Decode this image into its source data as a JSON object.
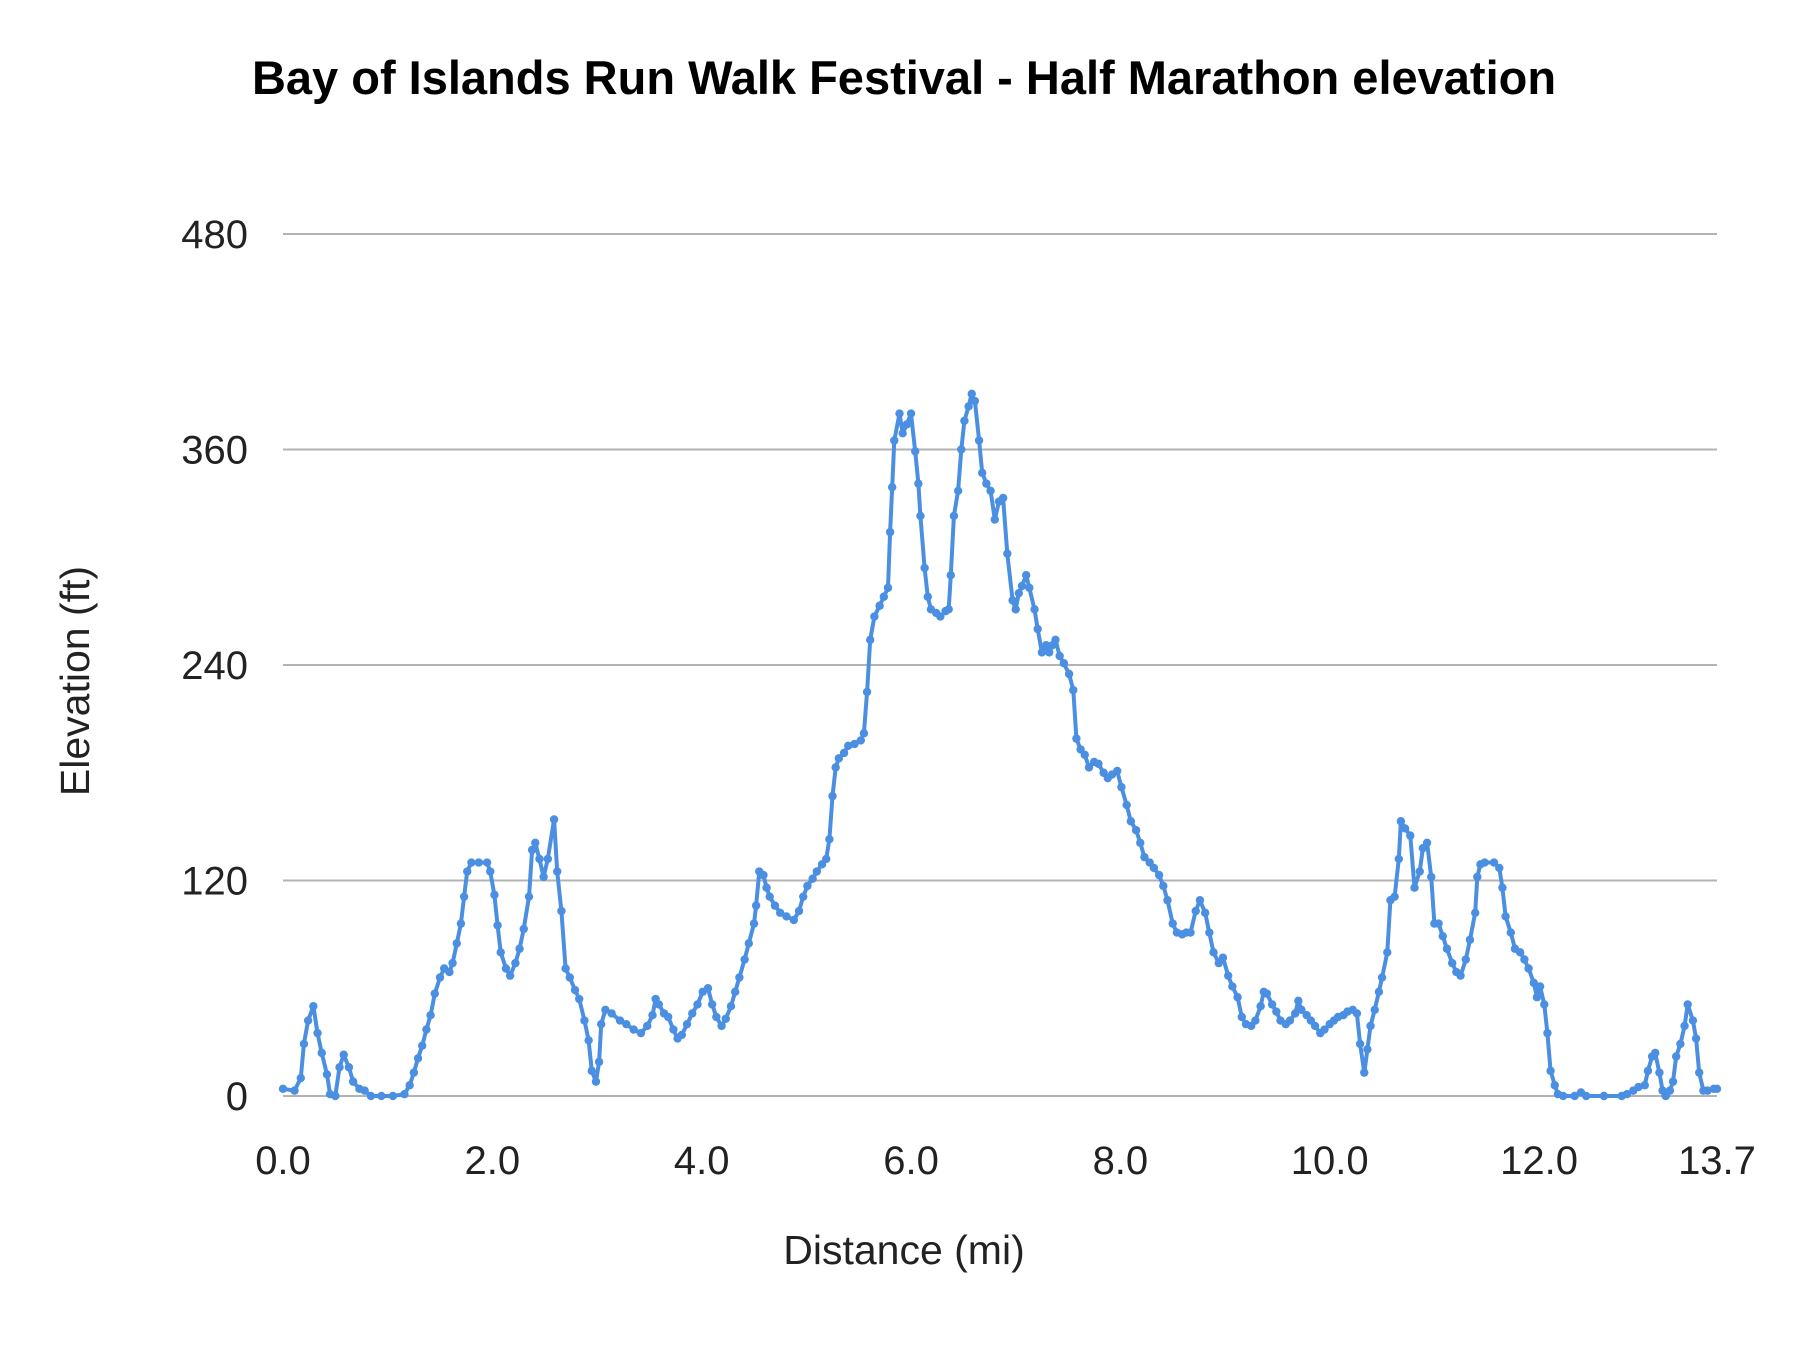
{
  "chart_data": {
    "type": "line",
    "title": "Bay of Islands Run Walk Festival - Half Marathon elevation",
    "xlabel": "Distance (mi)",
    "ylabel": "Elevation (ft)",
    "xlim": [
      0,
      13.7
    ],
    "ylim": [
      0,
      480
    ],
    "x_ticks": [
      "0.0",
      "2.0",
      "4.0",
      "6.0",
      "8.0",
      "10.0",
      "12.0",
      "13.7"
    ],
    "x_tick_values": [
      0,
      2,
      4,
      6,
      8,
      10,
      12,
      13.7
    ],
    "y_ticks": [
      "0",
      "120",
      "240",
      "360",
      "480"
    ],
    "y_tick_values": [
      0,
      120,
      240,
      360,
      480
    ],
    "grid": "horizontal",
    "legend": "none",
    "markers": true,
    "color": "#4a8fe2",
    "series": [
      {
        "x": [
          0.0,
          0.11,
          0.17,
          0.2,
          0.24,
          0.29,
          0.33,
          0.37,
          0.42,
          0.45,
          0.5,
          0.54,
          0.58,
          0.63,
          0.67,
          0.73,
          0.78,
          0.84,
          0.94,
          1.05,
          1.16,
          1.21,
          1.25,
          1.29,
          1.33,
          1.37,
          1.41,
          1.45,
          1.5,
          1.54,
          1.59,
          1.62,
          1.66,
          1.7,
          1.73,
          1.76,
          1.8,
          1.87,
          1.95,
          1.98,
          2.02,
          2.05,
          2.08,
          2.13,
          2.17,
          2.22,
          2.26,
          2.3,
          2.35,
          2.38,
          2.41,
          2.45,
          2.49,
          2.53,
          2.59,
          2.62,
          2.66,
          2.7,
          2.74,
          2.79,
          2.83,
          2.88,
          2.92,
          2.95,
          2.99,
          3.02,
          3.04,
          3.08,
          3.14,
          3.22,
          3.28,
          3.35,
          3.42,
          3.48,
          3.53,
          3.56,
          3.59,
          3.64,
          3.68,
          3.73,
          3.77,
          3.81,
          3.86,
          3.91,
          3.96,
          4.01,
          4.06,
          4.1,
          4.14,
          4.19,
          4.23,
          4.28,
          4.32,
          4.36,
          4.41,
          4.45,
          4.5,
          4.52,
          4.55,
          4.59,
          4.62,
          4.65,
          4.7,
          4.75,
          4.81,
          4.88,
          4.93,
          4.97,
          5.01,
          5.06,
          5.1,
          5.15,
          5.19,
          5.22,
          5.25,
          5.28,
          5.31,
          5.36,
          5.4,
          5.46,
          5.52,
          5.55,
          5.58,
          5.61,
          5.65,
          5.7,
          5.74,
          5.78,
          5.8,
          5.82,
          5.84,
          5.89,
          5.92,
          5.96,
          6.0,
          6.04,
          6.07,
          6.09,
          6.13,
          6.16,
          6.19,
          6.24,
          6.28,
          6.33,
          6.36,
          6.38,
          6.41,
          6.45,
          6.48,
          6.51,
          6.55,
          6.58,
          6.61,
          6.65,
          6.68,
          6.72,
          6.76,
          6.8,
          6.84,
          6.88,
          6.92,
          6.97,
          7.0,
          7.03,
          7.06,
          7.1,
          7.13,
          7.18,
          7.21,
          7.25,
          7.29,
          7.32,
          7.35,
          7.38,
          7.42,
          7.46,
          7.51,
          7.55,
          7.58,
          7.62,
          7.66,
          7.7,
          7.75,
          7.79,
          7.84,
          7.88,
          7.92,
          7.97,
          8.01,
          8.06,
          8.1,
          8.15,
          8.19,
          8.23,
          8.28,
          8.32,
          8.37,
          8.41,
          8.45,
          8.5,
          8.54,
          8.59,
          8.63,
          8.67,
          8.72,
          8.76,
          8.81,
          8.85,
          8.89,
          8.94,
          8.98,
          9.03,
          9.07,
          9.12,
          9.16,
          9.2,
          9.25,
          9.29,
          9.34,
          9.37,
          9.4,
          9.45,
          9.49,
          9.53,
          9.58,
          9.62,
          9.67,
          9.7,
          9.73,
          9.78,
          9.82,
          9.86,
          9.91,
          9.95,
          10.0,
          10.04,
          10.08,
          10.13,
          10.17,
          10.22,
          10.26,
          10.29,
          10.33,
          10.36,
          10.39,
          10.43,
          10.47,
          10.5,
          10.55,
          10.58,
          10.62,
          10.66,
          10.68,
          10.72,
          10.77,
          10.81,
          10.86,
          10.89,
          10.93,
          10.97,
          11.0,
          11.04,
          11.08,
          11.12,
          11.17,
          11.21,
          11.25,
          11.3,
          11.34,
          11.39,
          11.41,
          11.44,
          11.48,
          11.57,
          11.62,
          11.65,
          11.68,
          11.73,
          11.77,
          11.82,
          11.86,
          11.9,
          11.95,
          11.98,
          12.01,
          12.05,
          12.08,
          12.11,
          12.15,
          12.18,
          12.23,
          12.34,
          12.4,
          12.45,
          12.62,
          12.79,
          12.84,
          12.9,
          12.95,
          13.01,
          13.04,
          13.08,
          13.11,
          13.15,
          13.18,
          13.21,
          13.25,
          13.28,
          13.31,
          13.35,
          13.39,
          13.42,
          13.47,
          13.5,
          13.53,
          13.57,
          13.61,
          13.67,
          13.7
        ],
        "y": [
          4,
          3,
          10,
          29,
          42,
          50,
          35,
          24,
          12,
          1,
          0,
          16,
          23,
          16,
          8,
          4,
          3,
          0,
          0,
          0,
          1,
          6,
          13,
          21,
          28,
          37,
          45,
          57,
          66,
          71,
          69,
          74,
          85,
          96,
          111,
          125,
          130,
          130,
          130,
          125,
          112,
          95,
          80,
          71,
          67,
          74,
          82,
          93,
          111,
          137,
          141,
          132,
          122,
          132,
          154,
          125,
          103,
          71,
          66,
          59,
          54,
          42,
          31,
          14,
          8,
          19,
          40,
          48,
          46,
          42,
          40,
          37,
          35,
          39,
          45,
          54,
          51,
          46,
          44,
          37,
          32,
          34,
          40,
          46,
          51,
          58,
          60,
          51,
          44,
          39,
          43,
          50,
          58,
          66,
          76,
          85,
          96,
          106,
          125,
          123,
          116,
          111,
          106,
          102,
          100,
          98,
          103,
          111,
          117,
          121,
          125,
          129,
          132,
          143,
          167,
          183,
          188,
          191,
          195,
          196,
          198,
          202,
          225,
          254,
          267,
          273,
          278,
          283,
          314,
          339,
          365,
          380,
          369,
          374,
          380,
          359,
          341,
          323,
          294,
          278,
          271,
          269,
          267,
          270,
          271,
          290,
          323,
          337,
          360,
          376,
          384,
          391,
          387,
          365,
          347,
          341,
          337,
          321,
          331,
          333,
          302,
          276,
          271,
          280,
          284,
          290,
          283,
          271,
          260,
          247,
          251,
          247,
          251,
          254,
          245,
          241,
          235,
          226,
          199,
          193,
          190,
          183,
          186,
          185,
          180,
          177,
          179,
          181,
          172,
          162,
          153,
          148,
          141,
          133,
          130,
          127,
          123,
          117,
          109,
          96,
          91,
          90,
          91,
          91,
          103,
          109,
          102,
          91,
          80,
          74,
          77,
          67,
          61,
          55,
          44,
          40,
          39,
          42,
          50,
          58,
          57,
          51,
          47,
          42,
          40,
          42,
          46,
          53,
          48,
          45,
          42,
          39,
          35,
          37,
          40,
          42,
          44,
          45,
          47,
          48,
          46,
          29,
          13,
          26,
          39,
          48,
          58,
          66,
          80,
          109,
          111,
          132,
          153,
          149,
          145,
          116,
          125,
          138,
          141,
          122,
          96,
          96,
          89,
          82,
          74,
          69,
          67,
          76,
          87,
          102,
          122,
          129,
          130,
          130,
          127,
          116,
          100,
          91,
          82,
          80,
          76,
          71,
          63,
          55,
          61,
          51,
          35,
          14,
          6,
          1,
          0,
          0,
          2,
          0,
          0,
          0,
          1,
          3,
          5,
          6,
          14,
          22,
          24,
          13,
          3,
          0,
          3,
          8,
          22,
          29,
          39,
          51,
          42,
          32,
          13,
          3,
          3,
          4,
          4
        ]
      }
    ]
  }
}
